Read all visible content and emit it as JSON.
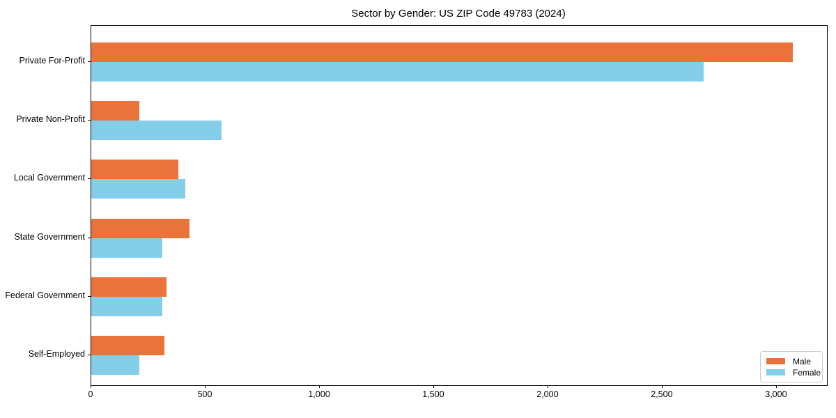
{
  "title": "Sector by Gender: US ZIP Code 49783 (2024)",
  "colors": {
    "male": "#E8743B",
    "female": "#85CEE9",
    "axis": "#000000",
    "legend_border": "#CCCCCC",
    "background": "#FFFFFF"
  },
  "chart_data": {
    "type": "bar",
    "orientation": "horizontal",
    "title": "Sector by Gender: US ZIP Code 49783 (2024)",
    "categories": [
      "Private For-Profit",
      "Private Non-Profit",
      "Local Government",
      "State Government",
      "Federal Government",
      "Self-Employed"
    ],
    "series": [
      {
        "name": "Male",
        "color": "#E8743B",
        "values": [
          3070,
          210,
          380,
          430,
          330,
          320
        ]
      },
      {
        "name": "Female",
        "color": "#85CEE9",
        "values": [
          2680,
          570,
          410,
          310,
          310,
          210
        ]
      }
    ],
    "xlabel": "",
    "ylabel": "",
    "xlim": [
      0,
      3220
    ],
    "x_ticks": [
      0,
      500,
      1000,
      1500,
      2000,
      2500,
      3000
    ],
    "x_tick_labels": [
      "0",
      "500",
      "1,000",
      "1,500",
      "2,000",
      "2,500",
      "3,000"
    ],
    "grid": false,
    "legend": {
      "position": "lower right"
    }
  }
}
